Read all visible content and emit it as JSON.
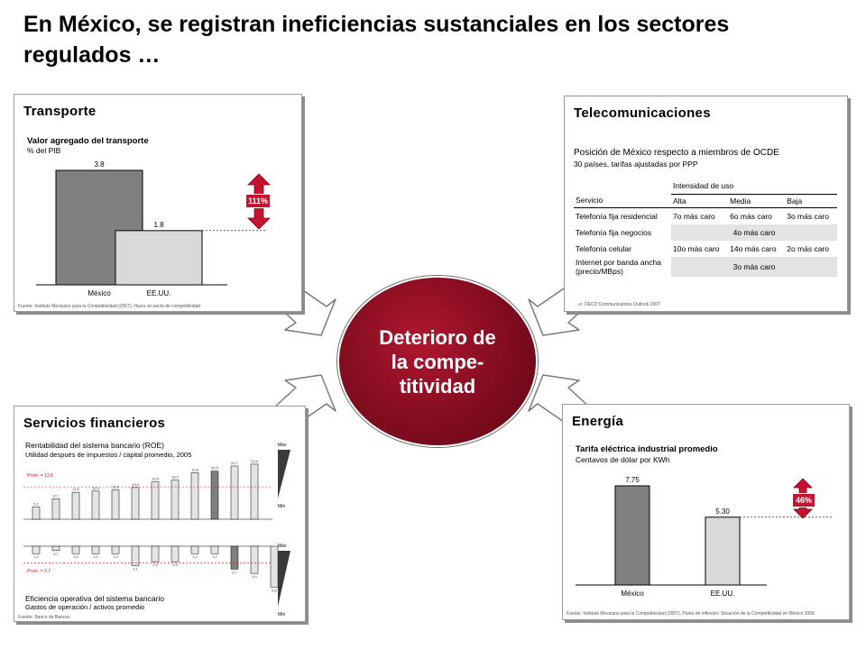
{
  "title": "En México, se registran ineficiencias sustanciales en los sectores regulados …",
  "center": {
    "text": "Deterioro de la compe-titividad"
  },
  "transporte": {
    "title": "Transporte",
    "subtitle": "Valor agregado del transporte",
    "unit": "% del PIB",
    "badge": "111%",
    "source": "Fuente: Instituto Mexicano para la Competitividad (2007), Hacia un pacto de competitividad"
  },
  "telecom": {
    "title": "Telecomunicaciones",
    "subtitle": "Posición de México respecto a miembros de OCDE",
    "unit": "30 países, tarifas ajustadas por PPP",
    "group_header": "Intensidad de uso",
    "headers": [
      "Servicio",
      "Alta",
      "Media",
      "Baja"
    ],
    "rows": [
      {
        "service": "Telefonía fija residencial",
        "cells": [
          "7o más caro",
          "6o más caro",
          "3o más caro"
        ]
      },
      {
        "service": "Telefonía fija negocios",
        "merged": "4o más caro"
      },
      {
        "service": "Telefonía celular",
        "cells": [
          "10o más caro",
          "14o más caro",
          "2o más caro"
        ]
      },
      {
        "service": "Internet por banda ancha (precio/MBps)",
        "merged": "3o más caro"
      }
    ],
    "source": "...e: OECD Communications Outlook 2007"
  },
  "financieros": {
    "title": "Servicios financieros",
    "roe_title": "Rentabilidad del sistema bancario (ROE)",
    "roe_unit": "Utilidad después de impuestos / capital promedio, 2005",
    "ef_title": "Eficiencia operativa del sistema bancario",
    "ef_unit": "Gastos de operación / activos promedio",
    "prom_roe": "Prom. = 13.8",
    "prom_ef": "Prom. = 2.7",
    "max_label": "Máx",
    "min_label": "Mín",
    "source": "Fuente: Banco de Bancos"
  },
  "energia": {
    "title": "Energía",
    "subtitle": "Tarifa eléctrica industrial promedio",
    "unit": "Centavos de dólar por KWh",
    "badge": "46%",
    "source": "Fuente: Instituto Mexicano para la Competitividad (2007), Punto de inflexión: Situación de la Competitividad en México 2006"
  },
  "chart_data": [
    {
      "type": "bar",
      "title": "Valor agregado del transporte",
      "ylabel": "% del PIB",
      "categories": [
        "México",
        "EE.UU."
      ],
      "values": [
        3.8,
        1.8
      ],
      "colors": [
        "#808080",
        "#d9d9d9"
      ]
    },
    {
      "type": "bar",
      "title": "Rentabilidad del sistema bancario (ROE)",
      "ylabel": "Utilidad después de impuestos / capital promedio, 2005",
      "values": [
        5.2,
        8.7,
        11.5,
        12.0,
        12.5,
        13.5,
        15.9,
        16.7,
        19.8,
        20.5,
        22.7,
        23.5
      ],
      "reference_line": 13.8,
      "highlight_index": 9
    },
    {
      "type": "bar",
      "title": "Eficiencia operativa del sistema bancario",
      "ylabel": "Gastos de operación / activos promedio",
      "values": [
        1.2,
        0.7,
        1.2,
        1.2,
        1.2,
        3.1,
        2.5,
        2.5,
        1.2,
        1.2,
        3.7,
        4.4,
        6.6
      ],
      "reference_line": 2.7,
      "highlight_index": 10
    },
    {
      "type": "bar",
      "title": "Tarifa eléctrica industrial promedio",
      "ylabel": "Centavos de dólar por KWh",
      "categories": [
        "México",
        "EE.UU."
      ],
      "values": [
        7.75,
        5.3
      ],
      "value_labels": [
        "7.75",
        "5.30"
      ],
      "colors": [
        "#808080",
        "#d9d9d9"
      ]
    }
  ]
}
